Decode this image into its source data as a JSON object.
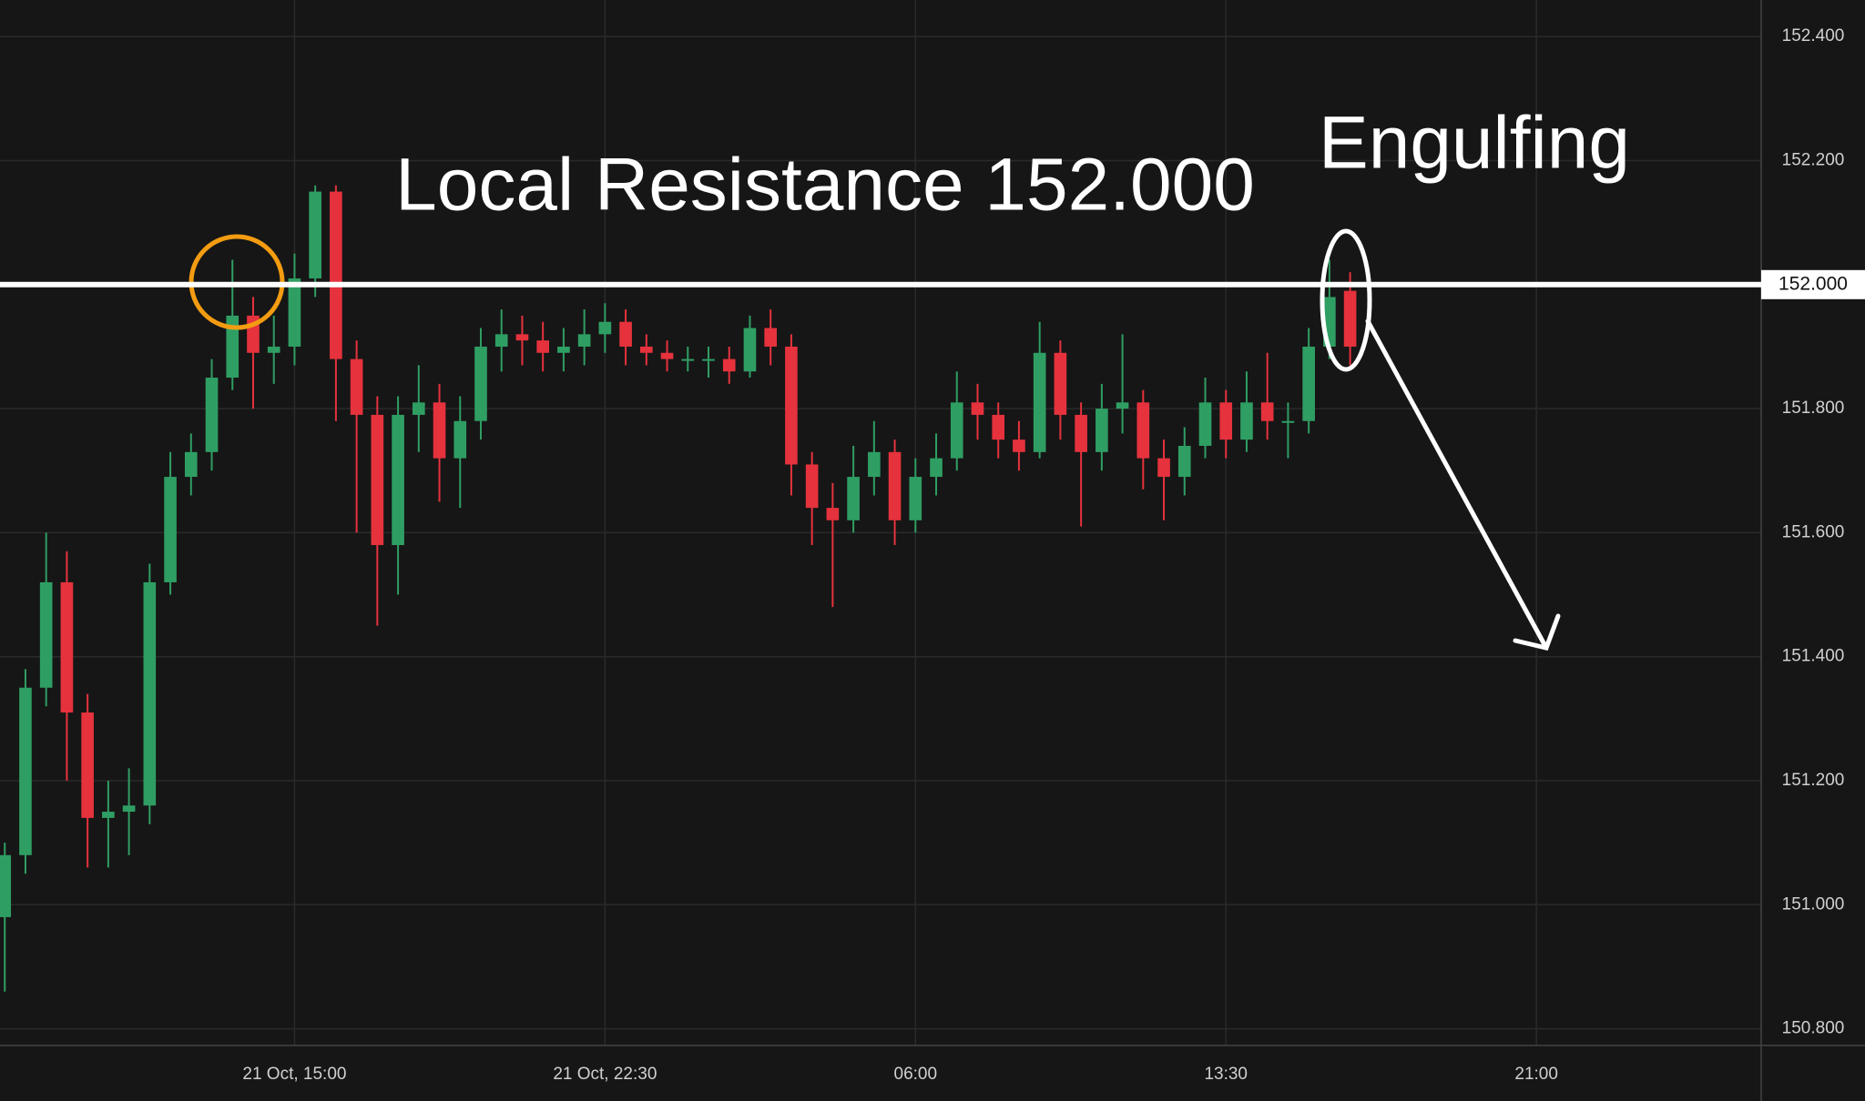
{
  "chart_data": {
    "type": "candlestick",
    "up_color": "#2f9e63",
    "down_color": "#e5323d",
    "grid": true,
    "xlim": [
      -0.23,
      84.86
    ],
    "ylim": [
      150.773,
      152.459
    ],
    "xticks": [
      {
        "value": 14,
        "label": "21 Oct, 15:00"
      },
      {
        "value": 29,
        "label": "21 Oct, 22:30"
      },
      {
        "value": 44,
        "label": "06:00"
      },
      {
        "value": 59,
        "label": "13:30"
      },
      {
        "value": 74,
        "label": "21:00"
      }
    ],
    "yticks": [
      {
        "value": 150.8,
        "label": "150.800"
      },
      {
        "value": 151,
        "label": "151.000"
      },
      {
        "value": 151.2,
        "label": "151.200"
      },
      {
        "value": 151.4,
        "label": "151.400"
      },
      {
        "value": 151.6,
        "label": "151.600"
      },
      {
        "value": 151.8,
        "label": "151.800"
      },
      {
        "value": 152.2,
        "label": "152.200"
      },
      {
        "value": 152.4,
        "label": "152.400"
      }
    ],
    "hline": {
      "value": 152,
      "label": "152.000"
    },
    "annotations": [
      "Local Resistance 152.000",
      "Engulfing"
    ],
    "open": [
      150.98,
      151.08,
      151.35,
      151.52,
      151.31,
      151.14,
      151.15,
      151.16,
      151.52,
      151.69,
      151.73,
      151.85,
      151.95,
      151.89,
      151.9,
      152.01,
      152.15,
      151.88,
      151.79,
      151.58,
      151.79,
      151.81,
      151.72,
      151.78,
      151.9,
      151.92,
      151.91,
      151.89,
      151.9,
      151.92,
      151.94,
      151.9,
      151.89,
      151.88,
      151.88,
      151.88,
      151.86,
      151.93,
      151.9,
      151.71,
      151.64,
      151.62,
      151.69,
      151.73,
      151.62,
      151.69,
      151.72,
      151.81,
      151.79,
      151.75,
      151.73,
      151.89,
      151.79,
      151.73,
      151.8,
      151.81,
      151.72,
      151.69,
      151.74,
      151.81,
      151.75,
      151.81,
      151.78,
      151.78,
      151.9,
      151.99
    ],
    "high": [
      151.1,
      151.38,
      151.6,
      151.57,
      151.34,
      151.2,
      151.22,
      151.55,
      151.73,
      151.76,
      151.88,
      152.04,
      151.98,
      151.95,
      152.05,
      152.16,
      152.16,
      151.91,
      151.82,
      151.82,
      151.87,
      151.84,
      151.82,
      151.93,
      151.96,
      151.95,
      151.94,
      151.93,
      151.96,
      151.97,
      151.96,
      151.92,
      151.91,
      151.9,
      151.9,
      151.9,
      151.95,
      151.96,
      151.92,
      151.73,
      151.68,
      151.74,
      151.78,
      151.75,
      151.72,
      151.76,
      151.86,
      151.84,
      151.81,
      151.78,
      151.94,
      151.91,
      151.81,
      151.84,
      151.92,
      151.83,
      151.75,
      151.77,
      151.85,
      151.83,
      151.86,
      151.89,
      151.81,
      151.93,
      152.04,
      152.02
    ],
    "low": [
      150.86,
      151.05,
      151.32,
      151.2,
      151.06,
      151.06,
      151.08,
      151.13,
      151.5,
      151.66,
      151.7,
      151.83,
      151.8,
      151.84,
      151.87,
      151.98,
      151.78,
      151.6,
      151.45,
      151.5,
      151.73,
      151.65,
      151.64,
      151.75,
      151.86,
      151.87,
      151.86,
      151.86,
      151.87,
      151.89,
      151.87,
      151.87,
      151.86,
      151.86,
      151.85,
      151.84,
      151.85,
      151.87,
      151.66,
      151.58,
      151.48,
      151.6,
      151.66,
      151.58,
      151.6,
      151.66,
      151.7,
      151.75,
      151.72,
      151.7,
      151.72,
      151.75,
      151.61,
      151.7,
      151.76,
      151.67,
      151.62,
      151.66,
      151.72,
      151.72,
      151.73,
      151.75,
      151.72,
      151.76,
      151.88,
      151.87
    ],
    "close": [
      151.08,
      151.35,
      151.52,
      151.31,
      151.14,
      151.15,
      151.16,
      151.52,
      151.69,
      151.73,
      151.85,
      151.95,
      151.89,
      151.9,
      152.01,
      152.15,
      151.88,
      151.79,
      151.58,
      151.79,
      151.81,
      151.72,
      151.78,
      151.9,
      151.92,
      151.91,
      151.89,
      151.9,
      151.92,
      151.94,
      151.9,
      151.89,
      151.88,
      151.88,
      151.88,
      151.86,
      151.93,
      151.9,
      151.71,
      151.64,
      151.62,
      151.69,
      151.73,
      151.62,
      151.69,
      151.72,
      151.81,
      151.79,
      151.75,
      151.73,
      151.89,
      151.79,
      151.73,
      151.8,
      151.81,
      151.72,
      151.69,
      151.74,
      151.81,
      151.75,
      151.81,
      151.78,
      151.78,
      151.9,
      151.98,
      151.9
    ]
  }
}
